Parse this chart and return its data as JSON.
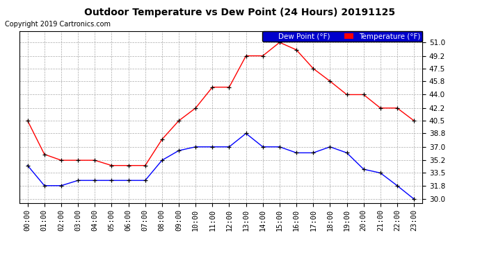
{
  "title": "Outdoor Temperature vs Dew Point (24 Hours) 20191125",
  "copyright": "Copyright 2019 Cartronics.com",
  "hours": [
    "00:00",
    "01:00",
    "02:00",
    "03:00",
    "04:00",
    "05:00",
    "06:00",
    "07:00",
    "08:00",
    "09:00",
    "10:00",
    "11:00",
    "12:00",
    "13:00",
    "14:00",
    "15:00",
    "16:00",
    "17:00",
    "18:00",
    "19:00",
    "20:00",
    "21:00",
    "22:00",
    "23:00"
  ],
  "temperature": [
    40.5,
    36.0,
    35.2,
    35.2,
    35.2,
    34.5,
    34.5,
    34.5,
    38.0,
    40.5,
    42.2,
    45.0,
    45.0,
    49.2,
    49.2,
    51.0,
    50.0,
    47.5,
    45.8,
    44.0,
    44.0,
    42.2,
    42.2,
    40.5
  ],
  "dew_point": [
    34.5,
    31.8,
    31.8,
    32.5,
    32.5,
    32.5,
    32.5,
    32.5,
    35.2,
    36.5,
    37.0,
    37.0,
    37.0,
    38.8,
    37.0,
    37.0,
    36.2,
    36.2,
    37.0,
    36.2,
    34.0,
    33.5,
    31.8,
    30.0
  ],
  "temp_color": "#ff0000",
  "dew_color": "#0000ff",
  "marker_color": "#000000",
  "ylim": [
    29.5,
    52.5
  ],
  "yticks": [
    30.0,
    31.8,
    33.5,
    35.2,
    37.0,
    38.8,
    40.5,
    42.2,
    44.0,
    45.8,
    47.5,
    49.2,
    51.0
  ],
  "bg_color": "#ffffff",
  "grid_color": "#aaaaaa",
  "legend_dew_bg": "#0000cc",
  "legend_temp_bg": "#ff0000",
  "title_fontsize": 10,
  "copyright_fontsize": 7,
  "tick_fontsize": 7.5,
  "legend_fontsize": 7.5
}
